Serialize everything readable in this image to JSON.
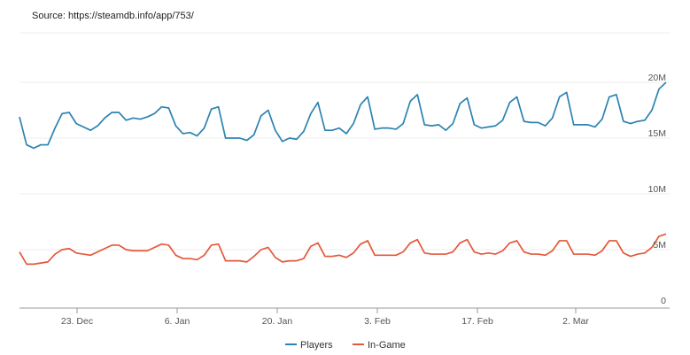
{
  "source_text": "Source: https://steamdb.info/app/753/",
  "chart_data": {
    "type": "line",
    "title": "",
    "xlabel": "",
    "ylabel": "",
    "ylim": [
      0,
      20000000
    ],
    "x_tick_labels": [
      "23. Dec",
      "6. Jan",
      "20. Jan",
      "3. Feb",
      "17. Feb",
      "2. Mar"
    ],
    "y_tick_labels": [
      "0",
      "5M",
      "10M",
      "15M",
      "20M"
    ],
    "legend_position": "bottom",
    "grid": true,
    "series": [
      {
        "name": "Players",
        "color": "#2b83b1",
        "values": [
          16.9,
          14.4,
          14.1,
          14.4,
          14.4,
          15.9,
          17.2,
          17.3,
          16.3,
          16.0,
          15.7,
          16.1,
          16.8,
          17.3,
          17.3,
          16.6,
          16.8,
          16.7,
          16.9,
          17.2,
          17.8,
          17.7,
          16.1,
          15.4,
          15.5,
          15.2,
          15.9,
          17.6,
          17.8,
          15.0,
          15.0,
          15.0,
          14.8,
          15.3,
          17.0,
          17.5,
          15.7,
          14.7,
          15.0,
          14.9,
          15.6,
          17.2,
          18.2,
          15.7,
          15.7,
          15.9,
          15.4,
          16.3,
          18.0,
          18.7,
          15.8,
          15.9,
          15.9,
          15.8,
          16.3,
          18.3,
          18.9,
          16.2,
          16.1,
          16.2,
          15.7,
          16.3,
          18.1,
          18.6,
          16.2,
          15.9,
          16.0,
          16.1,
          16.6,
          18.2,
          18.7,
          16.5,
          16.4,
          16.4,
          16.1,
          16.8,
          18.7,
          19.1,
          16.2,
          16.2,
          16.2,
          16.0,
          16.7,
          18.7,
          18.9,
          16.5,
          16.3,
          16.5,
          16.6,
          17.5,
          19.4,
          20.0
        ]
      },
      {
        "name": "In-Game",
        "color": "#e4583a",
        "values": [
          4.8,
          3.7,
          3.7,
          3.8,
          3.9,
          4.6,
          5.0,
          5.1,
          4.7,
          4.6,
          4.5,
          4.8,
          5.1,
          5.4,
          5.4,
          5.0,
          4.9,
          4.9,
          4.9,
          5.2,
          5.5,
          5.4,
          4.5,
          4.2,
          4.2,
          4.1,
          4.5,
          5.4,
          5.5,
          4.0,
          4.0,
          4.0,
          3.9,
          4.4,
          5.0,
          5.2,
          4.3,
          3.9,
          4.0,
          4.0,
          4.2,
          5.3,
          5.6,
          4.4,
          4.4,
          4.5,
          4.3,
          4.7,
          5.5,
          5.8,
          4.5,
          4.5,
          4.5,
          4.5,
          4.8,
          5.6,
          5.9,
          4.7,
          4.6,
          4.6,
          4.6,
          4.8,
          5.6,
          5.9,
          4.8,
          4.6,
          4.7,
          4.6,
          4.9,
          5.6,
          5.8,
          4.8,
          4.6,
          4.6,
          4.5,
          4.9,
          5.8,
          5.8,
          4.6,
          4.6,
          4.6,
          4.5,
          4.9,
          5.8,
          5.8,
          4.7,
          4.4,
          4.6,
          4.7,
          5.2,
          6.2,
          6.4
        ]
      }
    ]
  }
}
